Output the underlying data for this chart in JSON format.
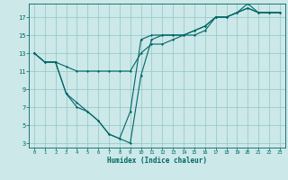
{
  "xlabel": "Humidex (Indice chaleur)",
  "background_color": "#cce8e8",
  "grid_color": "#99cccc",
  "line_color": "#006666",
  "xlim": [
    -0.5,
    23.5
  ],
  "ylim": [
    2.5,
    18.5
  ],
  "xticks": [
    0,
    1,
    2,
    3,
    4,
    5,
    6,
    7,
    8,
    9,
    10,
    11,
    12,
    13,
    14,
    15,
    16,
    17,
    18,
    19,
    20,
    21,
    22,
    23
  ],
  "yticks": [
    3,
    5,
    7,
    9,
    11,
    13,
    15,
    17
  ],
  "lines": [
    {
      "x": [
        0,
        1,
        2,
        3,
        4,
        5,
        6,
        7,
        8,
        9,
        10,
        11,
        12,
        13,
        14,
        15,
        16,
        17,
        18,
        19,
        20,
        21,
        22,
        23
      ],
      "y": [
        13,
        12,
        12,
        11.5,
        11,
        11,
        11,
        11,
        11,
        11,
        13,
        14,
        14,
        14.5,
        15,
        15,
        15.5,
        17,
        17,
        17.5,
        18.5,
        17.5,
        17.5,
        17.5
      ]
    },
    {
      "x": [
        0,
        1,
        2,
        3,
        4,
        5,
        6,
        7,
        8,
        9,
        10,
        11,
        12,
        13,
        14,
        15,
        16,
        17,
        18,
        19,
        20,
        21,
        22,
        23
      ],
      "y": [
        13,
        12,
        12,
        8.5,
        7,
        6.5,
        5.5,
        4,
        3.5,
        6.5,
        14.5,
        15,
        15,
        15,
        15,
        15.5,
        16,
        17,
        17,
        17.5,
        18,
        17.5,
        17.5,
        17.5
      ]
    },
    {
      "x": [
        0,
        1,
        2,
        3,
        4,
        5,
        6,
        7,
        8,
        9,
        10,
        11,
        12,
        13,
        14,
        15,
        16,
        17,
        18,
        19,
        20,
        21,
        22,
        23
      ],
      "y": [
        13,
        12,
        12,
        8.5,
        7.5,
        6.5,
        5.5,
        4,
        3.5,
        3,
        10.5,
        14.5,
        15,
        15,
        15,
        15.5,
        16,
        17,
        17,
        17.5,
        18,
        17.5,
        17.5,
        17.5
      ]
    }
  ]
}
